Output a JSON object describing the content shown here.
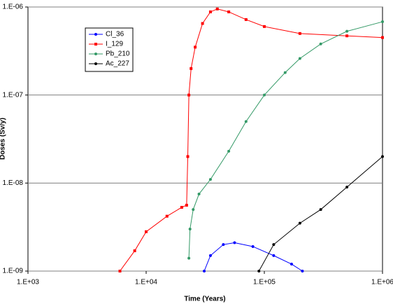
{
  "chart_data": {
    "type": "line",
    "x_label": "Time (Years)",
    "y_label": "Doses (Sv/y)",
    "xscale": "log",
    "yscale": "log",
    "grid": "y",
    "legend": "upper left",
    "xlim": [
      1000,
      1000000
    ],
    "xticks": [
      {
        "value": 1000,
        "label": "1.E+03"
      },
      {
        "value": 10000,
        "label": "1.E+04"
      },
      {
        "value": 100000,
        "label": "1.E+05"
      },
      {
        "value": 1000000,
        "label": "1.E+06"
      }
    ],
    "ylim": [
      1e-09,
      1e-06
    ],
    "yticks": [
      {
        "value": 1e-09,
        "label": "1.E-09"
      },
      {
        "value": 1e-08,
        "label": "1.E-08"
      },
      {
        "value": 1e-07,
        "label": "1.E-07"
      },
      {
        "value": 1e-06,
        "label": "1.E-06"
      }
    ],
    "series": [
      {
        "name": "Cl_36",
        "color": "#0000ff",
        "marker": "circle",
        "x": [
          31000,
          35000,
          45000,
          56000,
          80000,
          120000,
          170000,
          210000
        ],
        "values": [
          1e-09,
          1.5e-09,
          2e-09,
          2.1e-09,
          1.9e-09,
          1.5e-09,
          1.2e-09,
          1e-09
        ]
      },
      {
        "name": "I_129",
        "color": "#ff0000",
        "marker": "square",
        "x": [
          6000,
          8000,
          10000,
          15000,
          20000,
          22000,
          22500,
          23000,
          24000,
          26000,
          30000,
          35000,
          40000,
          50000,
          70000,
          100000,
          200000,
          500000,
          1000000
        ],
        "values": [
          1e-09,
          1.7e-09,
          2.8e-09,
          4.2e-09,
          5.3e-09,
          5.6e-09,
          2e-08,
          1e-07,
          2e-07,
          3.5e-07,
          6.5e-07,
          8.8e-07,
          9.5e-07,
          8.8e-07,
          7.2e-07,
          6e-07,
          5e-07,
          4.7e-07,
          4.5e-07
        ]
      },
      {
        "name": "Pb_210",
        "color": "#339966",
        "marker": "circle",
        "x": [
          23000,
          23500,
          25000,
          28000,
          35000,
          50000,
          70000,
          100000,
          150000,
          200000,
          300000,
          500000,
          1000000
        ],
        "values": [
          1.4e-09,
          3e-09,
          5e-09,
          7.5e-09,
          1.1e-08,
          2.3e-08,
          5e-08,
          1e-07,
          1.8e-07,
          2.6e-07,
          3.8e-07,
          5.3e-07,
          6.8e-07
        ]
      },
      {
        "name": "Ac_227",
        "color": "#000000",
        "marker": "circle",
        "x": [
          90000,
          120000,
          200000,
          300000,
          500000,
          1000000
        ],
        "values": [
          1e-09,
          2e-09,
          3.5e-09,
          5e-09,
          9e-09,
          2e-08
        ]
      }
    ]
  }
}
